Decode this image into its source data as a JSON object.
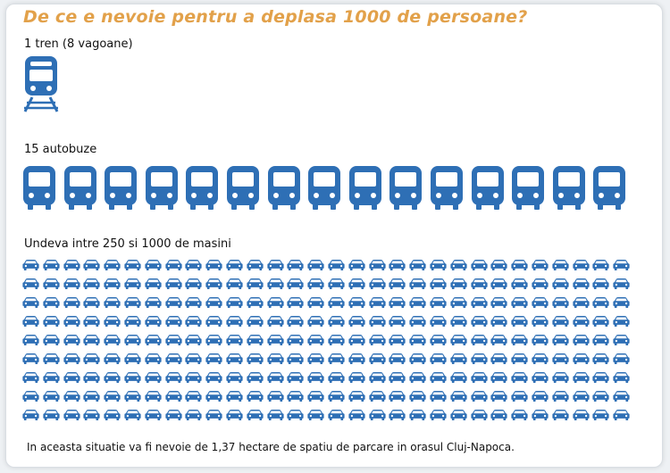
{
  "title": "De ce e nevoie pentru a deplasa 1000 de persoane?",
  "train": {
    "label": "1 tren (8 vagoane)",
    "count": 1,
    "icon": "train-icon"
  },
  "buses": {
    "label": "15 autobuze",
    "count": 15,
    "icon": "bus-icon"
  },
  "cars": {
    "label": "Undeva intre 250 si 1000 de masini",
    "rows": 9,
    "per_row": 30,
    "icon": "car-icon"
  },
  "footer": "In aceasta situatie va fi nevoie de 1,37 hectare de spatiu de parcare in orasul Cluj-Napoca.",
  "colors": {
    "icon_blue": "#2e6fb5",
    "title_orange": "#e2a14a"
  }
}
